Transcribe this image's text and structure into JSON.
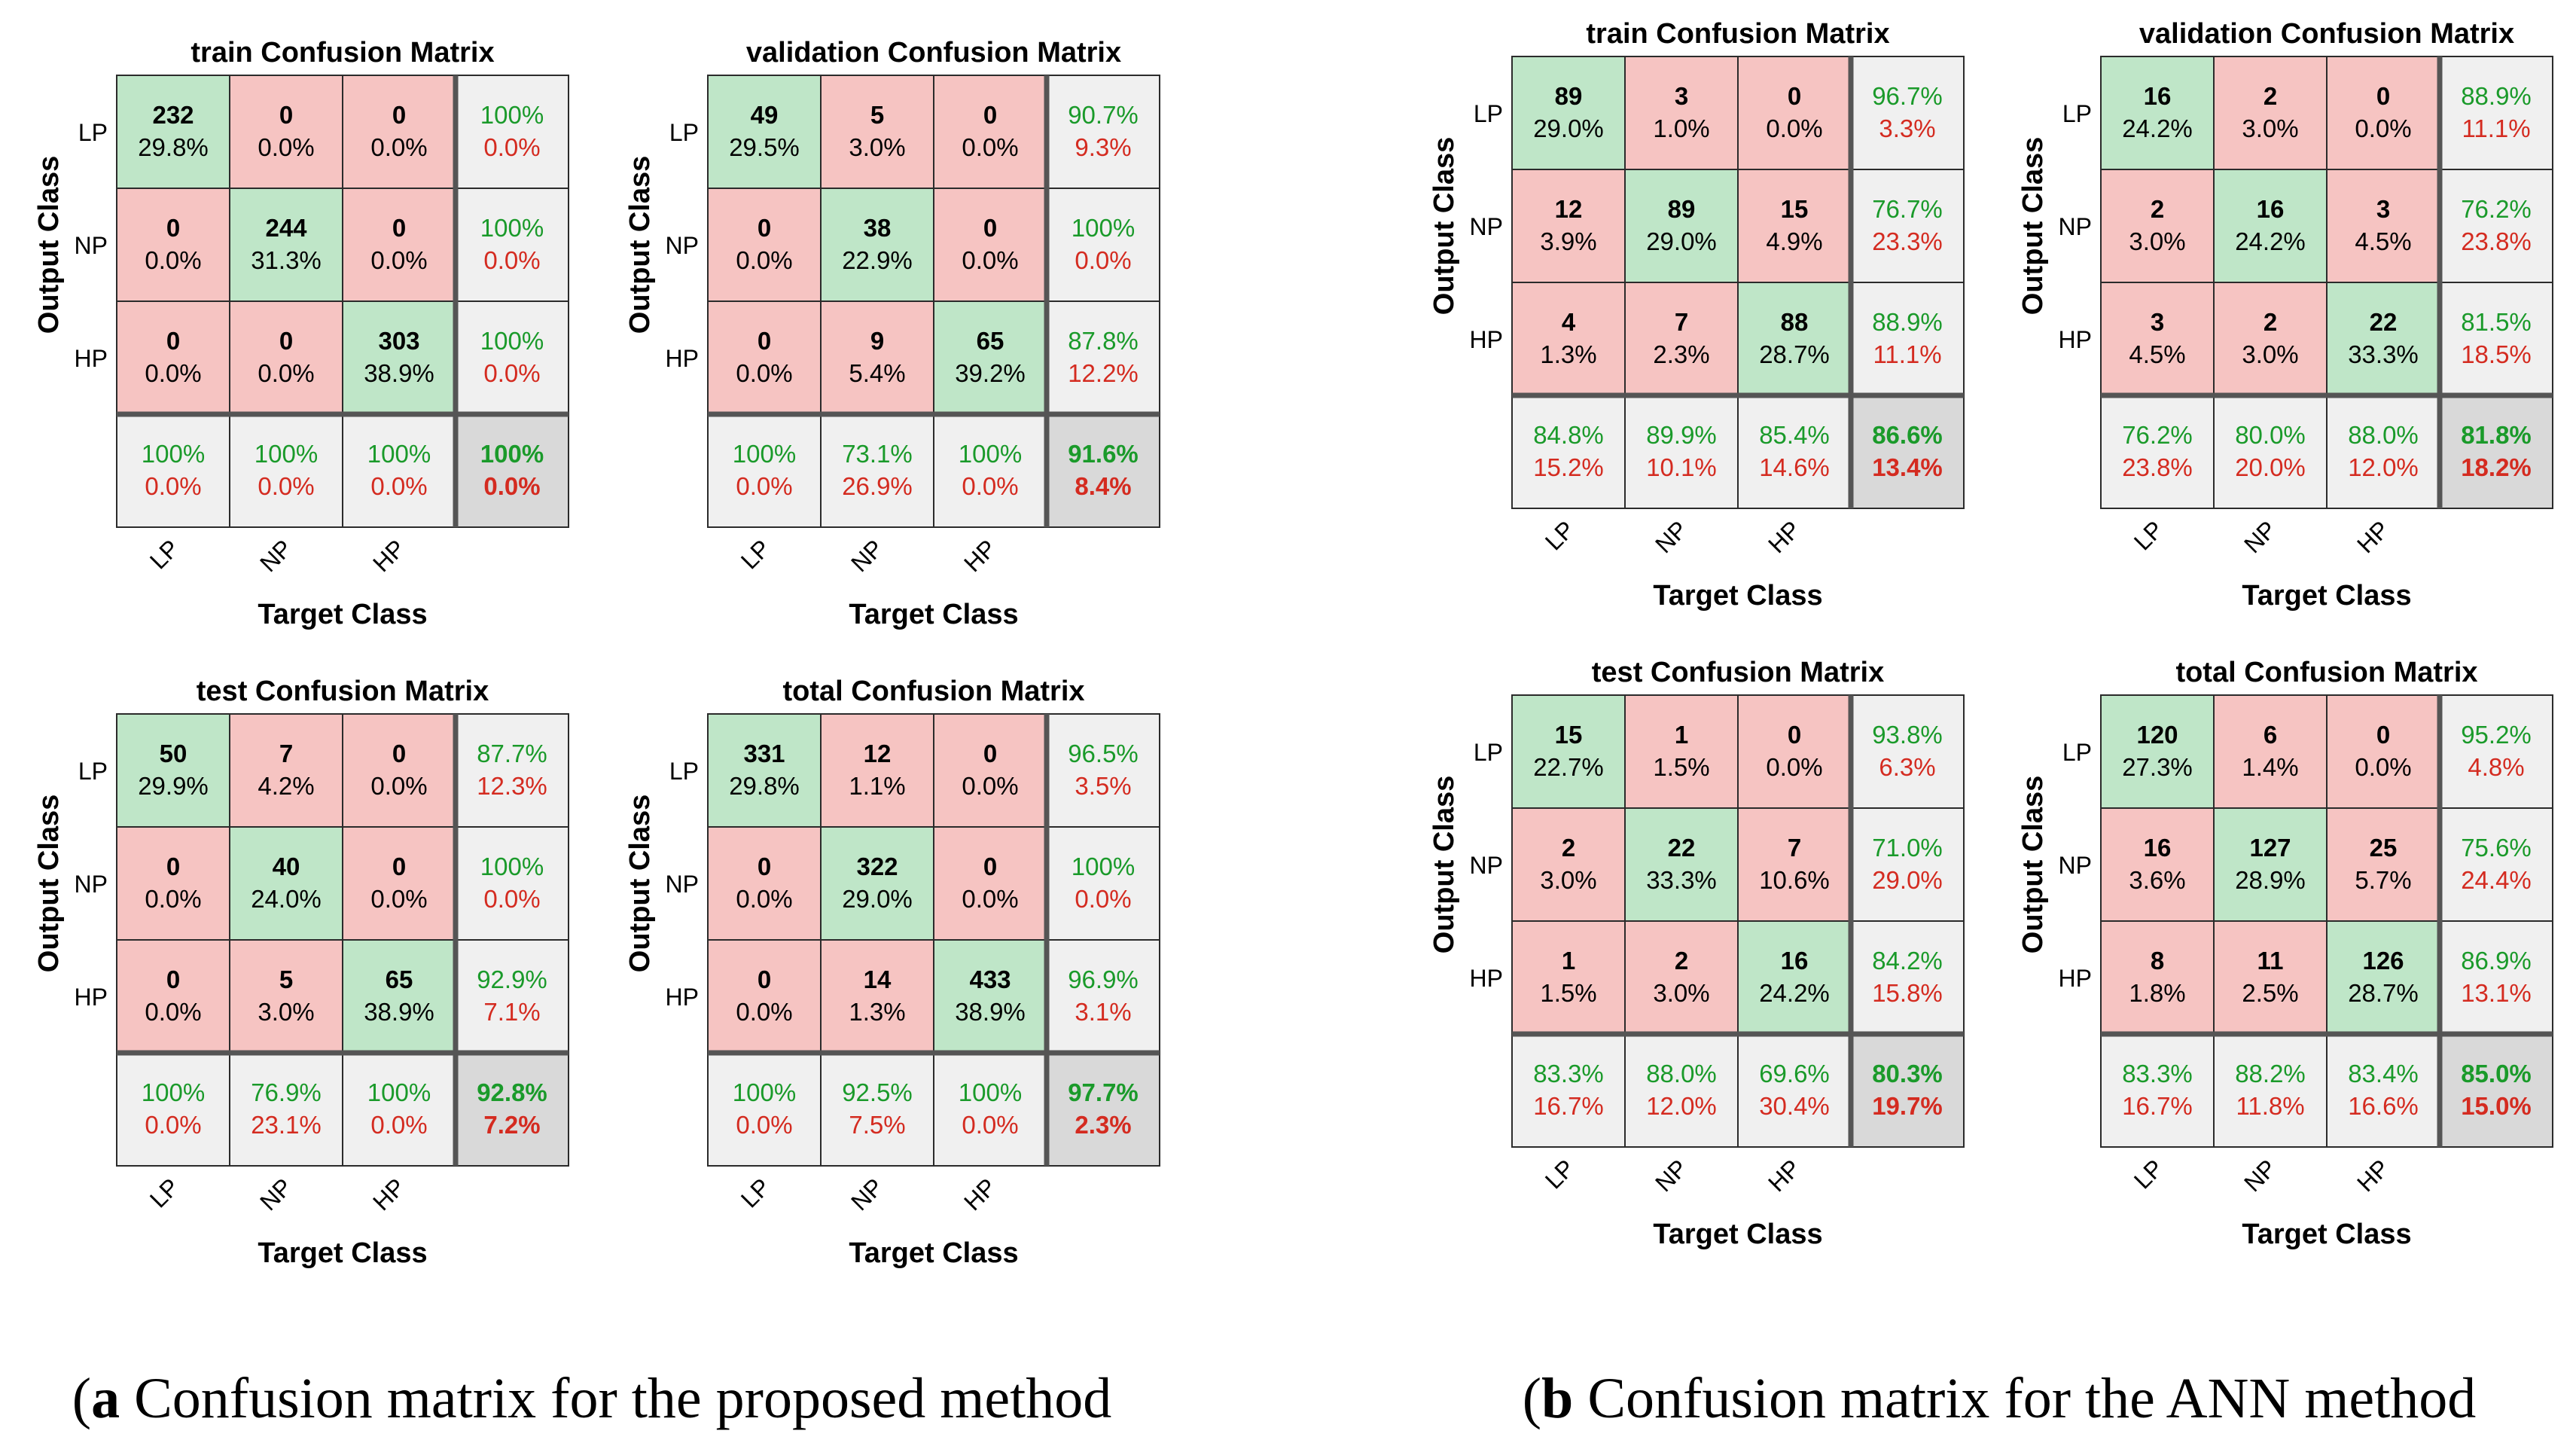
{
  "colors": {
    "correct_cell": "#bfe6c8",
    "wrong_cell": "#f6c4c2",
    "summary_cell": "#f0f0f0",
    "overall_cell": "#d9d9d9",
    "good_text": "#1a9a2a",
    "bad_text": "#d42b20",
    "grid_line": "#2b2b2b",
    "text": "#000000"
  },
  "labels": {
    "xlabel": "Target Class",
    "ylabel": "Output Class",
    "classes": [
      "LP",
      "NP",
      "HP"
    ]
  },
  "captions": [
    {
      "label": "a",
      "text": " Confusion matrix for the proposed method"
    },
    {
      "label": "b",
      "text": " Confusion matrix for the ANN method"
    }
  ],
  "chart_data": [
    {
      "panel": "a",
      "type": "heatmap",
      "title": "train Confusion Matrix",
      "xlabel": "Target Class",
      "ylabel": "Output Class",
      "classes": [
        "LP",
        "NP",
        "HP"
      ],
      "counts": [
        [
          232,
          0,
          0
        ],
        [
          0,
          244,
          0
        ],
        [
          0,
          0,
          303
        ]
      ],
      "percents": [
        [
          "29.8%",
          "0.0%",
          "0.0%"
        ],
        [
          "0.0%",
          "31.3%",
          "0.0%"
        ],
        [
          "0.0%",
          "0.0%",
          "38.9%"
        ]
      ],
      "row_summary": [
        [
          "100%",
          "0.0%"
        ],
        [
          "100%",
          "0.0%"
        ],
        [
          "100%",
          "0.0%"
        ]
      ],
      "col_summary": [
        [
          "100%",
          "0.0%"
        ],
        [
          "100%",
          "0.0%"
        ],
        [
          "100%",
          "0.0%"
        ]
      ],
      "overall": [
        "100%",
        "0.0%"
      ]
    },
    {
      "panel": "a",
      "type": "heatmap",
      "title": "validation Confusion Matrix",
      "xlabel": "Target Class",
      "ylabel": "Output Class",
      "classes": [
        "LP",
        "NP",
        "HP"
      ],
      "counts": [
        [
          49,
          5,
          0
        ],
        [
          0,
          38,
          0
        ],
        [
          0,
          9,
          65
        ]
      ],
      "percents": [
        [
          "29.5%",
          "3.0%",
          "0.0%"
        ],
        [
          "0.0%",
          "22.9%",
          "0.0%"
        ],
        [
          "0.0%",
          "5.4%",
          "39.2%"
        ]
      ],
      "row_summary": [
        [
          "90.7%",
          "9.3%"
        ],
        [
          "100%",
          "0.0%"
        ],
        [
          "87.8%",
          "12.2%"
        ]
      ],
      "col_summary": [
        [
          "100%",
          "0.0%"
        ],
        [
          "73.1%",
          "26.9%"
        ],
        [
          "100%",
          "0.0%"
        ]
      ],
      "overall": [
        "91.6%",
        "8.4%"
      ]
    },
    {
      "panel": "a",
      "type": "heatmap",
      "title": "test Confusion Matrix",
      "xlabel": "Target Class",
      "ylabel": "Output Class",
      "classes": [
        "LP",
        "NP",
        "HP"
      ],
      "counts": [
        [
          50,
          7,
          0
        ],
        [
          0,
          40,
          0
        ],
        [
          0,
          5,
          65
        ]
      ],
      "percents": [
        [
          "29.9%",
          "4.2%",
          "0.0%"
        ],
        [
          "0.0%",
          "24.0%",
          "0.0%"
        ],
        [
          "0.0%",
          "3.0%",
          "38.9%"
        ]
      ],
      "row_summary": [
        [
          "87.7%",
          "12.3%"
        ],
        [
          "100%",
          "0.0%"
        ],
        [
          "92.9%",
          "7.1%"
        ]
      ],
      "col_summary": [
        [
          "100%",
          "0.0%"
        ],
        [
          "76.9%",
          "23.1%"
        ],
        [
          "100%",
          "0.0%"
        ]
      ],
      "overall": [
        "92.8%",
        "7.2%"
      ]
    },
    {
      "panel": "a",
      "type": "heatmap",
      "title": "total Confusion Matrix",
      "xlabel": "Target Class",
      "ylabel": "Output Class",
      "classes": [
        "LP",
        "NP",
        "HP"
      ],
      "counts": [
        [
          331,
          12,
          0
        ],
        [
          0,
          322,
          0
        ],
        [
          0,
          14,
          433
        ]
      ],
      "percents": [
        [
          "29.8%",
          "1.1%",
          "0.0%"
        ],
        [
          "0.0%",
          "29.0%",
          "0.0%"
        ],
        [
          "0.0%",
          "1.3%",
          "38.9%"
        ]
      ],
      "row_summary": [
        [
          "96.5%",
          "3.5%"
        ],
        [
          "100%",
          "0.0%"
        ],
        [
          "96.9%",
          "3.1%"
        ]
      ],
      "col_summary": [
        [
          "100%",
          "0.0%"
        ],
        [
          "92.5%",
          "7.5%"
        ],
        [
          "100%",
          "0.0%"
        ]
      ],
      "overall": [
        "97.7%",
        "2.3%"
      ]
    },
    {
      "panel": "b",
      "type": "heatmap",
      "title": "train Confusion Matrix",
      "xlabel": "Target Class",
      "ylabel": "Output Class",
      "classes": [
        "LP",
        "NP",
        "HP"
      ],
      "counts": [
        [
          89,
          3,
          0
        ],
        [
          12,
          89,
          15
        ],
        [
          4,
          7,
          88
        ]
      ],
      "percents": [
        [
          "29.0%",
          "1.0%",
          "0.0%"
        ],
        [
          "3.9%",
          "29.0%",
          "4.9%"
        ],
        [
          "1.3%",
          "2.3%",
          "28.7%"
        ]
      ],
      "row_summary": [
        [
          "96.7%",
          "3.3%"
        ],
        [
          "76.7%",
          "23.3%"
        ],
        [
          "88.9%",
          "11.1%"
        ]
      ],
      "col_summary": [
        [
          "84.8%",
          "15.2%"
        ],
        [
          "89.9%",
          "10.1%"
        ],
        [
          "85.4%",
          "14.6%"
        ]
      ],
      "overall": [
        "86.6%",
        "13.4%"
      ]
    },
    {
      "panel": "b",
      "type": "heatmap",
      "title": "validation Confusion Matrix",
      "xlabel": "Target Class",
      "ylabel": "Output Class",
      "classes": [
        "LP",
        "NP",
        "HP"
      ],
      "counts": [
        [
          16,
          2,
          0
        ],
        [
          2,
          16,
          3
        ],
        [
          3,
          2,
          22
        ]
      ],
      "percents": [
        [
          "24.2%",
          "3.0%",
          "0.0%"
        ],
        [
          "3.0%",
          "24.2%",
          "4.5%"
        ],
        [
          "4.5%",
          "3.0%",
          "33.3%"
        ]
      ],
      "row_summary": [
        [
          "88.9%",
          "11.1%"
        ],
        [
          "76.2%",
          "23.8%"
        ],
        [
          "81.5%",
          "18.5%"
        ]
      ],
      "col_summary": [
        [
          "76.2%",
          "23.8%"
        ],
        [
          "80.0%",
          "20.0%"
        ],
        [
          "88.0%",
          "12.0%"
        ]
      ],
      "overall": [
        "81.8%",
        "18.2%"
      ]
    },
    {
      "panel": "b",
      "type": "heatmap",
      "title": "test Confusion Matrix",
      "xlabel": "Target Class",
      "ylabel": "Output Class",
      "classes": [
        "LP",
        "NP",
        "HP"
      ],
      "counts": [
        [
          15,
          1,
          0
        ],
        [
          2,
          22,
          7
        ],
        [
          1,
          2,
          16
        ]
      ],
      "percents": [
        [
          "22.7%",
          "1.5%",
          "0.0%"
        ],
        [
          "3.0%",
          "33.3%",
          "10.6%"
        ],
        [
          "1.5%",
          "3.0%",
          "24.2%"
        ]
      ],
      "row_summary": [
        [
          "93.8%",
          "6.3%"
        ],
        [
          "71.0%",
          "29.0%"
        ],
        [
          "84.2%",
          "15.8%"
        ]
      ],
      "col_summary": [
        [
          "83.3%",
          "16.7%"
        ],
        [
          "88.0%",
          "12.0%"
        ],
        [
          "69.6%",
          "30.4%"
        ]
      ],
      "overall": [
        "80.3%",
        "19.7%"
      ]
    },
    {
      "panel": "b",
      "type": "heatmap",
      "title": "total Confusion Matrix",
      "xlabel": "Target Class",
      "ylabel": "Output Class",
      "classes": [
        "LP",
        "NP",
        "HP"
      ],
      "counts": [
        [
          120,
          6,
          0
        ],
        [
          16,
          127,
          25
        ],
        [
          8,
          11,
          126
        ]
      ],
      "percents": [
        [
          "27.3%",
          "1.4%",
          "0.0%"
        ],
        [
          "3.6%",
          "28.9%",
          "5.7%"
        ],
        [
          "1.8%",
          "2.5%",
          "28.7%"
        ]
      ],
      "row_summary": [
        [
          "95.2%",
          "4.8%"
        ],
        [
          "75.6%",
          "24.4%"
        ],
        [
          "86.9%",
          "13.1%"
        ]
      ],
      "col_summary": [
        [
          "83.3%",
          "16.7%"
        ],
        [
          "88.2%",
          "11.8%"
        ],
        [
          "83.4%",
          "16.6%"
        ]
      ],
      "overall": [
        "85.0%",
        "15.0%"
      ]
    }
  ]
}
